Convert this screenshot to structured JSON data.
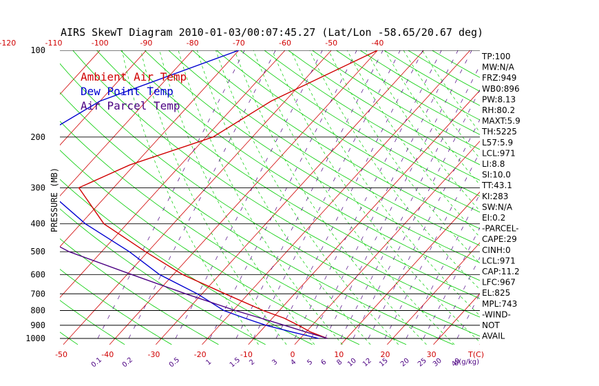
{
  "chart_data": {
    "type": "line",
    "title": "AIRS SkewT Diagram 2010-01-03/00:07:45.27 (Lat/Lon -58.65/20.67 deg)",
    "ylabel": "PRESSURE (MB)",
    "xlabel": "T(C)",
    "mix_unit": "g(g/kg)",
    "y_scale": "log",
    "ylim": [
      1000,
      100
    ],
    "pressure_ticks": [
      100,
      200,
      300,
      400,
      500,
      600,
      700,
      800,
      900,
      1000
    ],
    "top_temp_ticks": [
      -120,
      -110,
      -100,
      -90,
      -80,
      -70,
      -60,
      -50,
      -40
    ],
    "bottom_temp_ticks": [
      -50,
      -40,
      -30,
      -20,
      -10,
      0,
      10,
      20,
      30
    ],
    "mixing_ratio_labels": [
      "0.1",
      "0.2",
      "0.5",
      "1",
      "1.5",
      "2",
      "3",
      "4",
      "5",
      "6",
      "8",
      "10",
      "12",
      "15",
      "20",
      "25",
      "30",
      "40"
    ],
    "legend_position": "top-left",
    "colors": {
      "ambient": "#d00000",
      "dewpoint": "#0000d0",
      "parcel": "#4b0082",
      "adiabat": "#00cc00",
      "isotherm": "#d00000",
      "mixing": "#4b0082",
      "moist": "#00cc00",
      "isobar": "#000000"
    },
    "series": [
      {
        "name": "Ambient Air Temp",
        "points": [
          [
            100,
            -40.0
          ],
          [
            150,
            -53.0
          ],
          [
            200,
            -58.5
          ],
          [
            250,
            -71.0
          ],
          [
            300,
            -77.5
          ],
          [
            400,
            -65.0
          ],
          [
            500,
            -50.5
          ],
          [
            600,
            -38.0
          ],
          [
            700,
            -25.0
          ],
          [
            800,
            -13.5
          ],
          [
            850,
            -7.5
          ],
          [
            900,
            -3.0
          ],
          [
            950,
            1.0
          ],
          [
            1000,
            5.9
          ]
        ]
      },
      {
        "name": "Dew Point Temp",
        "points": [
          [
            100,
            -70.0
          ],
          [
            150,
            -90.0
          ],
          [
            200,
            -96.0
          ],
          [
            250,
            -93.5
          ],
          [
            300,
            -85.0
          ],
          [
            400,
            -69.0
          ],
          [
            500,
            -54.0
          ],
          [
            600,
            -43.0
          ],
          [
            700,
            -31.0
          ],
          [
            800,
            -22.0
          ],
          [
            850,
            -16.0
          ],
          [
            900,
            -10.0
          ],
          [
            950,
            -3.0
          ],
          [
            1000,
            4.0
          ]
        ]
      },
      {
        "name": "Air Parcel Temp",
        "points": [
          [
            200,
            -120.0
          ],
          [
            300,
            -104.0
          ],
          [
            400,
            -84.0
          ],
          [
            500,
            -67.0
          ],
          [
            600,
            -49.0
          ],
          [
            700,
            -33.5
          ],
          [
            800,
            -19.5
          ],
          [
            900,
            -6.0
          ],
          [
            950,
            0.0
          ],
          [
            1000,
            5.9
          ]
        ]
      }
    ]
  },
  "stats": [
    "TP:100",
    "MW:N/A",
    "FRZ:949",
    "WB0:896",
    "PW:8.13",
    "RH:80.2",
    "MAXT:5.9",
    "TH:5225",
    "L57:5.9",
    "LCL:971",
    "LI:8.8",
    "SI:10.0",
    "TT:43.1",
    "KI:283",
    "SW:N/A",
    "EI:0.2",
    "-PARCEL-",
    "CAPE:29",
    "CINH:0",
    "LCL:971",
    "CAP:11.2",
    "LFC:967",
    "EL:825",
    "MPL:743",
    "-WIND-",
    "NOT",
    "AVAIL"
  ]
}
